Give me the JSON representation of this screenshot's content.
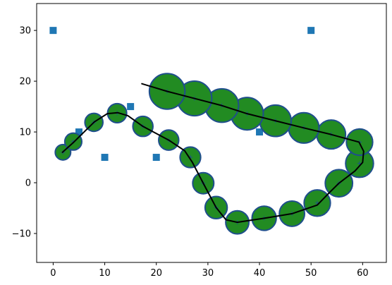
{
  "chart_data": {
    "type": "scatter",
    "title": "",
    "xlabel": "",
    "ylabel": "",
    "xlim": [
      -3.2,
      64.6
    ],
    "ylim": [
      -15.7,
      35.3
    ],
    "x_ticks": [
      0,
      10,
      20,
      30,
      40,
      50,
      60
    ],
    "y_ticks": [
      -10,
      0,
      10,
      20,
      30
    ],
    "grid": false,
    "colors": {
      "bubble_fill": "#228b22",
      "bubble_edge": "#1f4e8c",
      "square": "#1f77b4",
      "line": "#000000",
      "cross": "#1f4e8c"
    },
    "series": [
      {
        "kind": "square_markers",
        "points": [
          {
            "x": 0,
            "y": 30
          },
          {
            "x": 5,
            "y": 10
          },
          {
            "x": 10,
            "y": 5
          },
          {
            "x": 15,
            "y": 15
          },
          {
            "x": 20,
            "y": 5
          },
          {
            "x": 40,
            "y": 10
          },
          {
            "x": 50,
            "y": 30
          }
        ]
      },
      {
        "kind": "bubbles",
        "points": [
          {
            "x": 1.9,
            "y": 6.0,
            "size": 3.0
          },
          {
            "x": 3.9,
            "y": 8.1,
            "size": 3.3
          },
          {
            "x": 7.9,
            "y": 11.9,
            "size": 3.5
          },
          {
            "x": 12.4,
            "y": 13.7,
            "size": 3.7
          },
          {
            "x": 17.4,
            "y": 11.1,
            "size": 3.9
          },
          {
            "x": 22.4,
            "y": 8.4,
            "size": 3.9
          },
          {
            "x": 26.6,
            "y": 5.0,
            "size": 4.0
          },
          {
            "x": 29.1,
            "y": -0.1,
            "size": 4.1
          },
          {
            "x": 31.6,
            "y": -4.9,
            "size": 4.3
          },
          {
            "x": 35.7,
            "y": -7.8,
            "size": 4.5
          },
          {
            "x": 40.9,
            "y": -7.0,
            "size": 4.7
          },
          {
            "x": 46.3,
            "y": -6.1,
            "size": 4.9
          },
          {
            "x": 51.2,
            "y": -4.0,
            "size": 5.1
          },
          {
            "x": 55.4,
            "y": -0.1,
            "size": 5.3
          },
          {
            "x": 59.4,
            "y": 3.8,
            "size": 5.4
          },
          {
            "x": 59.4,
            "y": 8.0,
            "size": 5.1
          },
          {
            "x": 53.9,
            "y": 9.5,
            "size": 5.6
          },
          {
            "x": 48.6,
            "y": 10.8,
            "size": 5.9
          },
          {
            "x": 43.1,
            "y": 12.2,
            "size": 6.1
          },
          {
            "x": 37.6,
            "y": 13.6,
            "size": 6.3
          },
          {
            "x": 32.7,
            "y": 15.2,
            "size": 6.5
          },
          {
            "x": 27.4,
            "y": 16.6,
            "size": 6.7
          },
          {
            "x": 22.1,
            "y": 18.0,
            "size": 6.9
          }
        ]
      },
      {
        "kind": "line",
        "points": [
          {
            "x": 1.8,
            "y": 6.0
          },
          {
            "x": 4.0,
            "y": 8.0
          },
          {
            "x": 8.0,
            "y": 12.0
          },
          {
            "x": 10.5,
            "y": 13.6
          },
          {
            "x": 12.5,
            "y": 13.8
          },
          {
            "x": 14.5,
            "y": 13.2
          },
          {
            "x": 17.4,
            "y": 11.1
          },
          {
            "x": 22.4,
            "y": 8.4
          },
          {
            "x": 25.5,
            "y": 6.3
          },
          {
            "x": 27.0,
            "y": 4.0
          },
          {
            "x": 29.1,
            "y": -0.1
          },
          {
            "x": 31.6,
            "y": -4.9
          },
          {
            "x": 33.5,
            "y": -7.3
          },
          {
            "x": 35.7,
            "y": -7.8
          },
          {
            "x": 40.9,
            "y": -7.0
          },
          {
            "x": 46.3,
            "y": -6.1
          },
          {
            "x": 51.2,
            "y": -4.4
          },
          {
            "x": 53.5,
            "y": -2.0
          },
          {
            "x": 55.4,
            "y": -0.1
          },
          {
            "x": 58.5,
            "y": 2.3
          },
          {
            "x": 60.0,
            "y": 4.0
          },
          {
            "x": 60.2,
            "y": 6.2
          },
          {
            "x": 59.3,
            "y": 8.0
          },
          {
            "x": 53.9,
            "y": 9.5
          },
          {
            "x": 48.6,
            "y": 10.8
          },
          {
            "x": 43.1,
            "y": 12.2
          },
          {
            "x": 37.6,
            "y": 13.6
          },
          {
            "x": 32.7,
            "y": 15.2
          },
          {
            "x": 27.4,
            "y": 16.6
          },
          {
            "x": 22.1,
            "y": 18.0
          },
          {
            "x": 17.2,
            "y": 19.5
          }
        ]
      }
    ]
  }
}
